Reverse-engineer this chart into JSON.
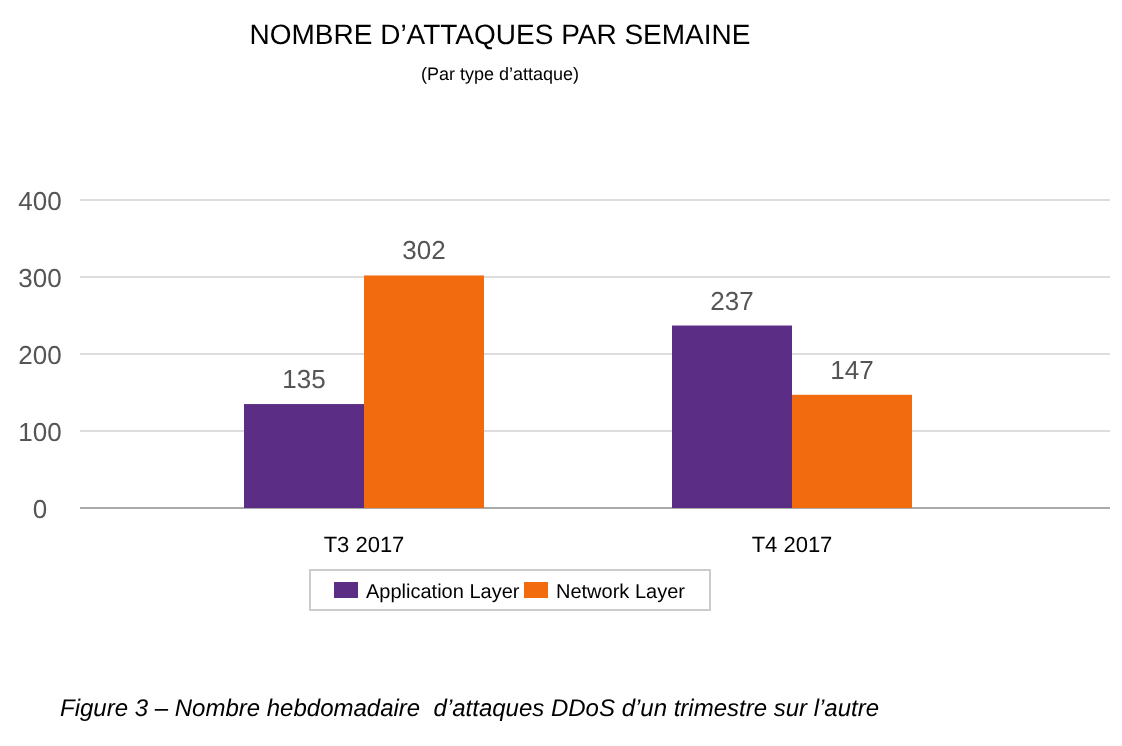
{
  "chart_data": {
    "type": "bar",
    "title": "NOMBRE D’ATTAQUES PAR SEMAINE",
    "subtitle": "(Par type d’attaque)",
    "categories": [
      "T3 2017",
      "T4 2017"
    ],
    "series": [
      {
        "name": "Application Layer",
        "color": "#5c2d84",
        "values": [
          135,
          237
        ]
      },
      {
        "name": "Network Layer",
        "color": "#f26b0f",
        "values": [
          302,
          147
        ]
      }
    ],
    "ylim": [
      0,
      400
    ],
    "yticks": [
      0,
      100,
      200,
      300,
      400
    ],
    "grid": "y",
    "legend": "bottom",
    "data_labels": true,
    "annotations": [
      "Figure 3 – Nombre hebdomadaire  d’attaques DDoS d’un trimestre sur l’autre"
    ]
  }
}
